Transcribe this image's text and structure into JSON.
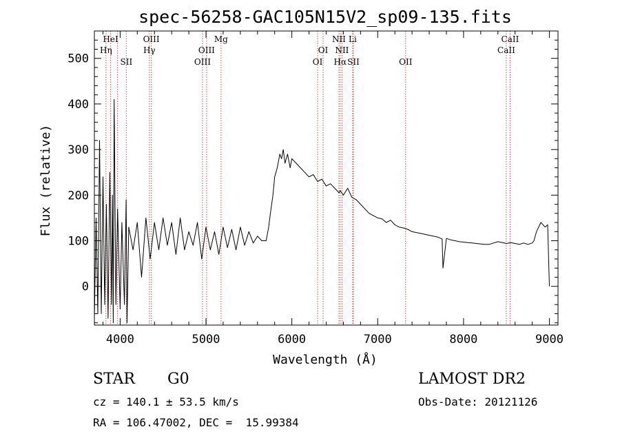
{
  "chart_data": {
    "type": "line",
    "title": "spec-56258-GAC105N15V2_sp09-135.fits",
    "xlabel": "Wavelength (Å)",
    "ylabel": "Flux (relative)",
    "xlim": [
      3700,
      9100
    ],
    "ylim": [
      -85,
      560
    ],
    "xticks": [
      4000,
      5000,
      6000,
      7000,
      8000,
      9000
    ],
    "yticks": [
      0,
      100,
      200,
      300,
      400,
      500
    ],
    "grid": false,
    "line_color": "#000000",
    "marker_color": "#c0504d",
    "series": [
      {
        "x": [
          3700,
          3720,
          3740,
          3760,
          3780,
          3800,
          3820,
          3840,
          3860,
          3880,
          3900,
          3910,
          3920,
          3930,
          3950,
          3970,
          4000,
          4020,
          4050,
          4070,
          4080,
          4100,
          4150,
          4200,
          4250,
          4300,
          4350,
          4400,
          4450,
          4500,
          4550,
          4600,
          4650,
          4700,
          4750,
          4800,
          4850,
          4900,
          4950,
          5000,
          5050,
          5100,
          5150,
          5200,
          5250,
          5300,
          5350,
          5400,
          5450,
          5500,
          5550,
          5600,
          5650,
          5700,
          5730,
          5750,
          5780,
          5800,
          5830,
          5860,
          5880,
          5900,
          5920,
          5950,
          5980,
          6000,
          6050,
          6100,
          6150,
          6200,
          6250,
          6300,
          6350,
          6400,
          6450,
          6500,
          6550,
          6563,
          6600,
          6650,
          6700,
          6750,
          6800,
          6850,
          6900,
          6950,
          7000,
          7050,
          7100,
          7150,
          7200,
          7250,
          7300,
          7350,
          7400,
          7450,
          7500,
          7550,
          7600,
          7650,
          7700,
          7750,
          7760,
          7800,
          7850,
          7900,
          7950,
          8000,
          8050,
          8100,
          8150,
          8200,
          8250,
          8300,
          8350,
          8400,
          8450,
          8500,
          8550,
          8600,
          8650,
          8700,
          8750,
          8800,
          8820,
          8850,
          8900,
          8950,
          8980,
          9000
        ],
        "y": [
          -70,
          150,
          -60,
          320,
          -60,
          240,
          -40,
          180,
          -70,
          250,
          -40,
          200,
          -80,
          410,
          -40,
          170,
          -50,
          140,
          -40,
          190,
          -80,
          130,
          80,
          140,
          20,
          150,
          60,
          140,
          80,
          150,
          90,
          140,
          70,
          150,
          80,
          120,
          90,
          140,
          60,
          130,
          80,
          120,
          70,
          130,
          85,
          125,
          80,
          130,
          90,
          120,
          95,
          110,
          100,
          100,
          130,
          160,
          200,
          240,
          260,
          290,
          280,
          300,
          270,
          290,
          260,
          280,
          270,
          260,
          250,
          240,
          245,
          230,
          235,
          220,
          225,
          215,
          205,
          210,
          200,
          215,
          195,
          190,
          180,
          170,
          160,
          155,
          150,
          148,
          140,
          145,
          135,
          130,
          128,
          125,
          120,
          118,
          116,
          114,
          112,
          110,
          108,
          104,
          40,
          105,
          102,
          100,
          98,
          97,
          96,
          95,
          94,
          93,
          92,
          92,
          95,
          98,
          96,
          94,
          96,
          94,
          92,
          95,
          92,
          95,
          100,
          120,
          140,
          130,
          135,
          0
        ]
      }
    ],
    "lines_top": [
      {
        "text": "HeI",
        "x": 3889
      },
      {
        "text": "Hη",
        "x": 3835
      },
      {
        "text": "OIII",
        "x": 4363
      },
      {
        "text": "Hγ",
        "x": 4340
      },
      {
        "text": "SII",
        "x": 4072
      },
      {
        "text": "Mg",
        "x": 5175
      },
      {
        "text": "OIII",
        "x": 5007
      },
      {
        "text": "OIII",
        "x": 4959
      },
      {
        "text": "NII",
        "x": 6548
      },
      {
        "text": "Li",
        "x": 6708
      },
      {
        "text": "OI",
        "x": 6364
      },
      {
        "text": "NII",
        "x": 6584
      },
      {
        "text": "OI",
        "x": 6300
      },
      {
        "text": "Hα",
        "x": 6563
      },
      {
        "text": "SII",
        "x": 6717
      },
      {
        "text": "OII",
        "x": 7325
      },
      {
        "text": "CaII",
        "x": 8542
      },
      {
        "text": "CaII",
        "x": 8498
      }
    ],
    "line_markers": [
      3835,
      3889,
      3970,
      4072,
      4340,
      4363,
      4959,
      5007,
      5175,
      6300,
      6364,
      6548,
      6563,
      6584,
      6708,
      6717,
      7325,
      8498,
      8542
    ]
  },
  "info": {
    "class_label": "STAR",
    "subclass": "G0",
    "survey": "LAMOST DR2",
    "redshift_line": "cz = 140.1 ± 53.5 km/s",
    "obs_date_line": "Obs-Date: 20121126",
    "coords_line": "RA = 106.47002, DEC =  15.99384"
  }
}
